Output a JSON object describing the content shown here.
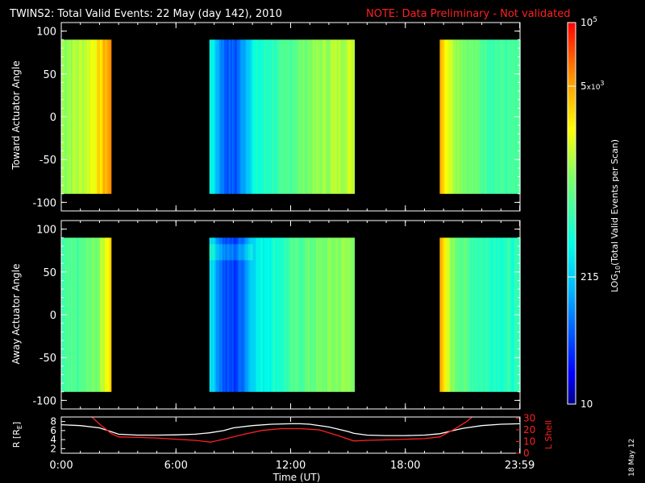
{
  "header": {
    "title": "TWINS2: Total Valid Events: 22 May (day 142), 2010",
    "note": "NOTE: Data Preliminary - Not validated"
  },
  "side_stamp": "18 May 12",
  "colors": {
    "background": "#000000",
    "axis": "#ffffff",
    "note": "#ff2020",
    "lshell": "#ff2020"
  },
  "chart_data": [
    {
      "type": "heatmap",
      "ylabel": "Toward Actuator Angle",
      "ylim": [
        -110,
        110
      ],
      "yticks": [
        "100",
        "50",
        "0",
        "-50",
        "-100"
      ],
      "ytick_values": [
        100,
        50,
        0,
        -50,
        -100
      ],
      "xlim_hours": [
        0,
        24
      ],
      "data_extent_deg": [
        -90,
        90
      ],
      "segments": [
        {
          "start_h": 0.0,
          "end_h": 2.6,
          "profile": [
            [
              0,
              0.62
            ],
            [
              0.45,
              0.66
            ],
            [
              0.75,
              0.75
            ],
            [
              0.88,
              0.82
            ],
            [
              1.0,
              0.86
            ]
          ]
        },
        {
          "start_h": 7.75,
          "end_h": 15.3,
          "profile": [
            [
              0,
              0.45
            ],
            [
              0.04,
              0.33
            ],
            [
              0.1,
              0.2
            ],
            [
              0.18,
              0.18
            ],
            [
              0.24,
              0.3
            ],
            [
              0.3,
              0.42
            ],
            [
              0.42,
              0.48
            ],
            [
              0.5,
              0.5
            ],
            [
              0.58,
              0.55
            ],
            [
              0.7,
              0.6
            ],
            [
              0.85,
              0.64
            ],
            [
              1.0,
              0.67
            ]
          ]
        },
        {
          "start_h": 19.8,
          "end_h": 24.0,
          "profile": [
            [
              0,
              0.85
            ],
            [
              0.05,
              0.75
            ],
            [
              0.15,
              0.66
            ],
            [
              0.35,
              0.58
            ],
            [
              0.6,
              0.52
            ],
            [
              1.0,
              0.5
            ]
          ]
        }
      ]
    },
    {
      "type": "heatmap",
      "ylabel": "Away Actuator Angle",
      "ylim": [
        -110,
        110
      ],
      "yticks": [
        "100",
        "50",
        "0",
        "-50",
        "-100"
      ],
      "ytick_values": [
        100,
        50,
        0,
        -50,
        -100
      ],
      "xlim_hours": [
        0,
        24
      ],
      "data_extent_deg": [
        -90,
        90
      ],
      "segments": [
        {
          "start_h": 0.0,
          "end_h": 2.6,
          "profile": [
            [
              0,
              0.5
            ],
            [
              0.4,
              0.53
            ],
            [
              0.75,
              0.6
            ],
            [
              0.9,
              0.72
            ],
            [
              1.0,
              0.8
            ]
          ]
        },
        {
          "start_h": 7.75,
          "end_h": 15.3,
          "profile": [
            [
              0,
              0.4
            ],
            [
              0.04,
              0.3
            ],
            [
              0.1,
              0.17
            ],
            [
              0.18,
              0.15
            ],
            [
              0.24,
              0.25
            ],
            [
              0.3,
              0.38
            ],
            [
              0.42,
              0.44
            ],
            [
              0.5,
              0.47
            ],
            [
              0.58,
              0.52
            ],
            [
              0.7,
              0.56
            ],
            [
              0.85,
              0.6
            ],
            [
              1.0,
              0.62
            ]
          ]
        },
        {
          "start_h": 19.8,
          "end_h": 24.0,
          "profile": [
            [
              0,
              0.82
            ],
            [
              0.05,
              0.72
            ],
            [
              0.15,
              0.6
            ],
            [
              0.35,
              0.52
            ],
            [
              0.6,
              0.48
            ],
            [
              1.0,
              0.46
            ]
          ]
        }
      ]
    },
    {
      "type": "line",
      "xlabel": "Time (UT)",
      "xticks": [
        "0:00",
        "6:00",
        "12:00",
        "18:00",
        "23:59"
      ],
      "xtick_hours": [
        0,
        6,
        12,
        18,
        23.983
      ],
      "ylabel": "R [RE]",
      "ylabel_main": "R [R",
      "ylabel_sub": "E",
      "ylabel_end": "]",
      "ylim": [
        1,
        9
      ],
      "yticks": [
        "8",
        "6",
        "4",
        "2"
      ],
      "ytick_values": [
        8,
        6,
        4,
        2
      ],
      "y2label": "L Shell",
      "y2lim": [
        0,
        31
      ],
      "y2ticks": [
        "30",
        "20",
        "10",
        "0"
      ],
      "y2tick_values": [
        30,
        20,
        10,
        0
      ],
      "series": [
        {
          "axis": "left",
          "hours": [
            0,
            1,
            2,
            2.5,
            3,
            4,
            5,
            6,
            7,
            7.75,
            8.5,
            9,
            10,
            11,
            12,
            12.5,
            13,
            14,
            15,
            15.3,
            16,
            17,
            18,
            19,
            19.8,
            20.5,
            21,
            22,
            23,
            23.98
          ],
          "values": [
            7.3,
            7.1,
            6.6,
            5.9,
            5.2,
            5.0,
            5.0,
            5.05,
            5.2,
            5.5,
            6.0,
            6.6,
            7.1,
            7.4,
            7.5,
            7.5,
            7.4,
            6.8,
            5.8,
            5.4,
            5.0,
            4.9,
            4.9,
            5.0,
            5.3,
            6.0,
            6.5,
            7.1,
            7.4,
            7.5
          ]
        },
        {
          "axis": "right",
          "hours": [
            1.6,
            2.0,
            2.6,
            3.0,
            4,
            5,
            6,
            7,
            7.8,
            8.5,
            9.5,
            10.5,
            11.5,
            12.5,
            13.5,
            14.5,
            15.3,
            16,
            17,
            18,
            19,
            19.8,
            20.5,
            21.2,
            21.5
          ],
          "values": [
            31,
            25,
            17,
            14,
            13.5,
            13,
            12,
            11,
            9.5,
            12,
            16,
            19.5,
            21,
            21,
            20,
            15,
            10.5,
            11,
            11.5,
            12,
            12.5,
            14,
            20,
            27,
            31
          ]
        }
      ]
    }
  ],
  "colorbar": {
    "label_main": "LOG",
    "label_sub": "10",
    "label_rest": "(Total Valid Events per Scan)",
    "ticks": [
      {
        "label": "10",
        "sup": "5",
        "base": "",
        "exp": "",
        "frac": 1.0
      },
      {
        "label": "5",
        "sup": "",
        "base": "x10",
        "exp": "3",
        "frac": 0.8333
      },
      {
        "label": "215",
        "sup": "",
        "base": "",
        "exp": "",
        "frac": 0.3333
      },
      {
        "label": "10",
        "sup": "",
        "base": "",
        "exp": "",
        "frac": 0.0
      }
    ]
  }
}
